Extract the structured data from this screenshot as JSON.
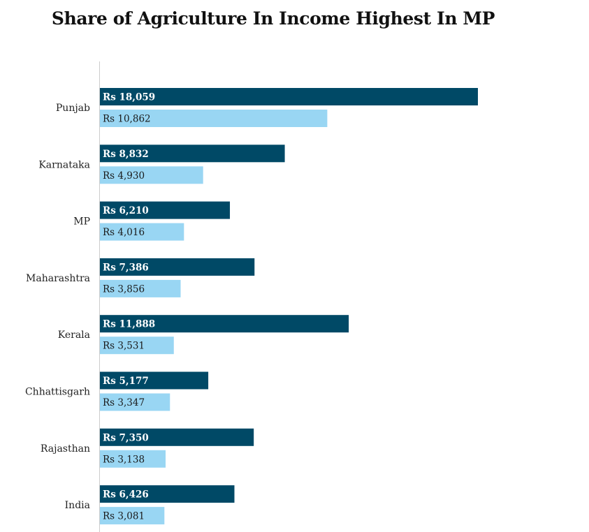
{
  "chart_data": {
    "type": "bar",
    "orientation": "horizontal",
    "title": "Share of Agriculture In Income Highest In MP",
    "categories": [
      "Punjab",
      "Karnataka",
      "MP",
      "Maharashtra",
      "Kerala",
      "Chhattisgarh",
      "Rajasthan",
      "India"
    ],
    "series": [
      {
        "values": [
          18059,
          8832,
          6210,
          7386,
          11888,
          5177,
          7350,
          6426
        ],
        "labels": [
          "Rs 18,059",
          "Rs 8,832",
          "Rs 6,210",
          "Rs 7,386",
          "Rs 11,888",
          "Rs 5,177",
          "Rs 7,350",
          "Rs 6,426"
        ],
        "color": "#004966"
      },
      {
        "values": [
          10862,
          4930,
          4016,
          3856,
          3531,
          3347,
          3138,
          3081
        ],
        "labels": [
          "Rs 10,862",
          "Rs 4,930",
          "Rs 4,016",
          "Rs 3,856",
          "Rs 3,531",
          "Rs 3,347",
          "Rs 3,138",
          "Rs 3,081"
        ],
        "color": "#99d6f3"
      }
    ],
    "xlim": [
      0,
      18059
    ],
    "grid": false,
    "legend": "none",
    "axis_color": "#cccccc"
  }
}
